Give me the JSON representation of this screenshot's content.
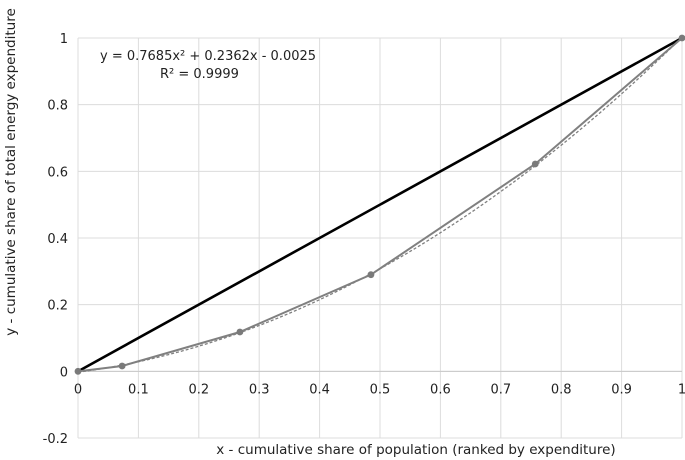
{
  "chart_data": {
    "type": "line",
    "title": "",
    "xlabel": "x - cumulative share of population (ranked by expenditure)",
    "ylabel": "y - cumulative share of total energy expenditure",
    "xlim": [
      0,
      1
    ],
    "ylim": [
      -0.2,
      1
    ],
    "x_ticks": [
      0,
      0.1,
      0.2,
      0.3,
      0.4,
      0.5,
      0.6,
      0.7,
      0.8,
      0.9,
      1
    ],
    "y_ticks": [
      -0.2,
      0,
      0.2,
      0.4,
      0.6,
      0.8,
      1
    ],
    "x_tick_labels": [
      "0",
      "0.1",
      "0.2",
      "0.3",
      "0.4",
      "0.5",
      "0.6",
      "0.7",
      "0.8",
      "0.9",
      "1"
    ],
    "y_tick_labels": [
      "-0.2",
      "0",
      "0.2",
      "0.4",
      "0.6",
      "0.8",
      "1"
    ],
    "grid": true,
    "series": [
      {
        "role": "equality-line",
        "color": "#000000",
        "points": [
          [
            0,
            0
          ],
          [
            1,
            1
          ]
        ]
      },
      {
        "role": "lorenz-curve",
        "color": "#808080",
        "markers": true,
        "points": [
          [
            0,
            0
          ],
          [
            0.073,
            0.016
          ],
          [
            0.268,
            0.118
          ],
          [
            0.485,
            0.29
          ],
          [
            0.757,
            0.622
          ],
          [
            1,
            1
          ]
        ]
      },
      {
        "role": "polynomial-trendline",
        "color": "#808080",
        "coefficients": [
          0.7685,
          0.2362,
          -0.0025
        ]
      }
    ],
    "annotations": {
      "equation": "y = 0.7685x² + 0.2362x - 0.0025",
      "r_squared": "R² = 0.9999"
    }
  }
}
